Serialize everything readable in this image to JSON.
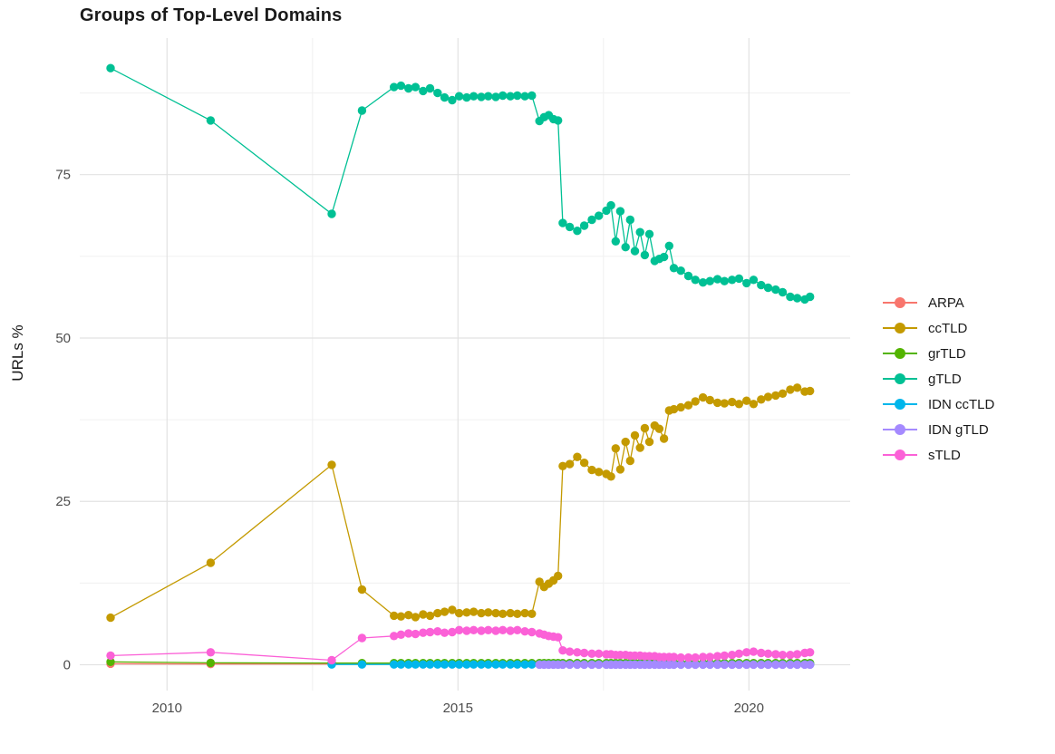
{
  "chart_data": {
    "type": "line",
    "title": "Groups of Top-Level Domains",
    "xlabel": "",
    "ylabel": "URLs %",
    "grid": true,
    "legend_position": "right",
    "x_axis": {
      "ticks": [
        2010,
        2015,
        2020
      ],
      "minor": [
        2012.5,
        2017.5
      ],
      "lim": [
        2008.5,
        2021.74
      ]
    },
    "y_axis": {
      "ticks": [
        0,
        25,
        50,
        75
      ],
      "minor": [
        12.5,
        37.5,
        62.5,
        87.5
      ],
      "lim": [
        -3.95,
        95.9
      ]
    },
    "x_sparse": [
      2009.03,
      2010.75,
      2012.83,
      2013.35
    ],
    "x_dense": [
      2013.9,
      2014.02,
      2014.15,
      2014.27,
      2014.4,
      2014.52,
      2014.65,
      2014.77,
      2014.9,
      2015.02,
      2015.15,
      2015.27,
      2015.4,
      2015.52,
      2015.65,
      2015.77,
      2015.9,
      2016.02,
      2016.15,
      2016.27,
      2016.4,
      2016.48,
      2016.56,
      2016.64,
      2016.72,
      2016.8,
      2016.92,
      2017.05,
      2017.17,
      2017.3,
      2017.42,
      2017.55,
      2017.63,
      2017.71,
      2017.79,
      2017.88,
      2017.96,
      2018.04,
      2018.13,
      2018.21,
      2018.29,
      2018.38,
      2018.46,
      2018.54,
      2018.63,
      2018.71,
      2018.83,
      2018.96,
      2019.08,
      2019.21,
      2019.33,
      2019.46,
      2019.58,
      2019.71,
      2019.83,
      2019.96,
      2020.08,
      2020.21,
      2020.33,
      2020.46,
      2020.58,
      2020.71,
      2020.83,
      2020.96,
      2021.05
    ],
    "series": [
      {
        "name": "ARPA",
        "color": "#F8766D",
        "sparse": [
          0.15,
          0.12,
          0.12,
          0.1
        ],
        "dense": 0.1
      },
      {
        "name": "ccTLD",
        "color": "#C49A00",
        "sparse": [
          7.2,
          15.6,
          30.6,
          11.5
        ],
        "dense": [
          7.5,
          7.4,
          7.6,
          7.3,
          7.7,
          7.5,
          7.9,
          8.1,
          8.4,
          7.9,
          8.0,
          8.1,
          7.9,
          8.0,
          7.9,
          7.8,
          7.9,
          7.8,
          7.9,
          7.8,
          12.7,
          11.9,
          12.4,
          12.9,
          13.6,
          30.4,
          30.7,
          31.8,
          30.9,
          29.8,
          29.5,
          29.2,
          28.8,
          33.1,
          29.9,
          34.1,
          31.2,
          35.1,
          33.2,
          36.2,
          34.1,
          36.6,
          36.1,
          34.6,
          38.9,
          39.1,
          39.4,
          39.7,
          40.3,
          40.9,
          40.5,
          40.1,
          40.0,
          40.2,
          39.9,
          40.4,
          39.9,
          40.6,
          41.0,
          41.2,
          41.5,
          42.1,
          42.4,
          41.8,
          41.9
        ]
      },
      {
        "name": "grTLD",
        "color": "#53B400",
        "sparse": [
          0.45,
          0.3,
          0.25,
          0.25
        ],
        "dense": 0.25
      },
      {
        "name": "gTLD",
        "color": "#00C094",
        "sparse": [
          91.3,
          83.3,
          69.0,
          84.8
        ],
        "dense": [
          88.4,
          88.6,
          88.2,
          88.4,
          87.8,
          88.2,
          87.5,
          86.8,
          86.4,
          87.0,
          86.8,
          87.0,
          86.9,
          87.0,
          86.9,
          87.1,
          87.0,
          87.1,
          87.0,
          87.1,
          83.2,
          83.8,
          84.1,
          83.5,
          83.3,
          67.6,
          67.0,
          66.4,
          67.2,
          68.1,
          68.7,
          69.5,
          70.3,
          64.8,
          69.4,
          63.9,
          68.1,
          63.3,
          66.2,
          62.7,
          65.9,
          61.8,
          62.1,
          62.4,
          64.1,
          60.7,
          60.3,
          59.5,
          58.9,
          58.5,
          58.7,
          59.0,
          58.7,
          58.9,
          59.1,
          58.4,
          58.9,
          58.1,
          57.7,
          57.4,
          57.0,
          56.3,
          56.1,
          55.9,
          56.3
        ]
      },
      {
        "name": "IDN ccTLD",
        "color": "#00B6EB",
        "sparse": [
          null,
          null,
          0.05,
          0.05
        ],
        "dense": 0.05
      },
      {
        "name": "IDN gTLD",
        "color": "#A58AFF",
        "sparse": [
          null,
          null,
          null,
          null
        ],
        "dense": 0.02,
        "dense_start": 20
      },
      {
        "name": "sTLD",
        "color": "#FB61D7",
        "sparse": [
          1.4,
          1.9,
          0.7,
          4.1
        ],
        "dense": [
          4.4,
          4.6,
          4.8,
          4.7,
          4.9,
          5.0,
          5.1,
          4.9,
          5.0,
          5.3,
          5.2,
          5.3,
          5.2,
          5.3,
          5.2,
          5.3,
          5.2,
          5.3,
          5.1,
          5.0,
          4.8,
          4.6,
          4.4,
          4.3,
          4.2,
          2.2,
          2.0,
          1.9,
          1.8,
          1.7,
          1.7,
          1.6,
          1.6,
          1.5,
          1.5,
          1.5,
          1.4,
          1.4,
          1.4,
          1.3,
          1.3,
          1.3,
          1.2,
          1.2,
          1.2,
          1.2,
          1.1,
          1.1,
          1.1,
          1.2,
          1.2,
          1.3,
          1.4,
          1.5,
          1.7,
          1.9,
          2.0,
          1.8,
          1.7,
          1.6,
          1.5,
          1.5,
          1.6,
          1.8,
          1.9
        ]
      }
    ]
  }
}
